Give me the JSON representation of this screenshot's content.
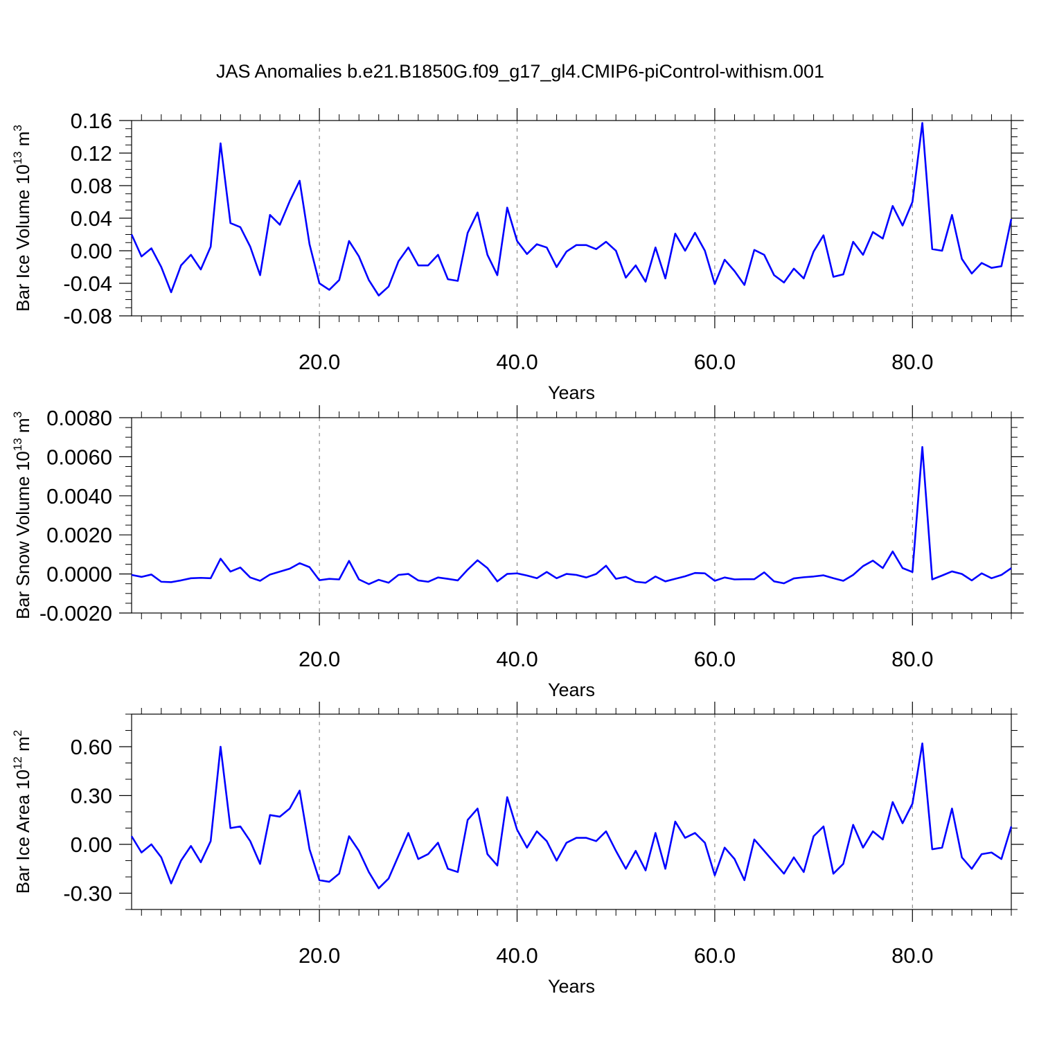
{
  "figure_title": "JAS Anomalies b.e21.B1850G.f09_g17_gl4.CMIP6-piControl-withism.001",
  "line_color": "#0000ff",
  "chart_data": [
    {
      "type": "line",
      "ylabel": "Bar Ice Volume 10",
      "ylabel_exp": "13",
      "ylabel_unit": "m",
      "ylabel_unit_exp": "3",
      "xlabel": "Years",
      "xlim": [
        1,
        90
      ],
      "ylim": [
        -0.08,
        0.16
      ],
      "xticks": [
        20,
        40,
        60,
        80
      ],
      "xtick_labels": [
        "20.0",
        "40.0",
        "60.0",
        "80.0"
      ],
      "yticks": [
        -0.08,
        -0.04,
        0.0,
        0.04,
        0.08,
        0.12,
        0.16
      ],
      "ytick_labels": [
        "-0.08",
        "-0.04",
        "0.00",
        "0.04",
        "0.08",
        "0.12",
        "0.16"
      ],
      "y_minor_step": 0.01,
      "x_minor_step": 2,
      "grid": "vertical dashed at major x ticks",
      "series": [
        {
          "values": [
            0.02,
            -0.007,
            0.003,
            -0.02,
            -0.051,
            -0.018,
            -0.005,
            -0.023,
            0.005,
            0.132,
            0.034,
            0.029,
            0.005,
            -0.03,
            0.044,
            0.032,
            0.061,
            0.086,
            0.008,
            -0.04,
            -0.048,
            -0.036,
            0.012,
            -0.007,
            -0.036,
            -0.055,
            -0.044,
            -0.013,
            0.004,
            -0.018,
            -0.018,
            -0.005,
            -0.035,
            -0.037,
            0.022,
            0.047,
            -0.005,
            -0.03,
            0.053,
            0.012,
            -0.004,
            0.008,
            0.004,
            -0.02,
            -0.001,
            0.007,
            0.007,
            0.002,
            0.011,
            0.0,
            -0.033,
            -0.018,
            -0.038,
            0.004,
            -0.034,
            0.021,
            0.0,
            0.022,
            0.0,
            -0.041,
            -0.011,
            -0.025,
            -0.042,
            0.001,
            -0.005,
            -0.03,
            -0.039,
            -0.022,
            -0.034,
            -0.001,
            0.019,
            -0.032,
            -0.029,
            0.011,
            -0.005,
            0.023,
            0.015,
            0.055,
            0.031,
            0.06,
            0.157,
            0.002,
            0.0,
            0.044,
            -0.01,
            -0.028,
            -0.015,
            -0.021,
            -0.019,
            0.039
          ]
        }
      ]
    },
    {
      "type": "line",
      "ylabel": "Bar Snow Volume 10",
      "ylabel_exp": "13",
      "ylabel_unit": "m",
      "ylabel_unit_exp": "3",
      "xlabel": "Years",
      "xlim": [
        1,
        90
      ],
      "ylim": [
        -0.002,
        0.008
      ],
      "xticks": [
        20,
        40,
        60,
        80
      ],
      "xtick_labels": [
        "20.0",
        "40.0",
        "60.0",
        "80.0"
      ],
      "yticks": [
        -0.002,
        0.0,
        0.002,
        0.004,
        0.006,
        0.008
      ],
      "ytick_labels": [
        "-0.0020",
        "0.0000",
        "0.0020",
        "0.0040",
        "0.0060",
        "0.0080"
      ],
      "y_minor_step": 0.0005,
      "x_minor_step": 2,
      "grid": "vertical dashed at major x ticks",
      "series": [
        {
          "values": [
            -5e-05,
            -0.00015,
            -3e-05,
            -0.0004,
            -0.00042,
            -0.00033,
            -0.00022,
            -0.0002,
            -0.00022,
            0.00078,
            0.00012,
            0.00033,
            -0.00018,
            -0.00035,
            -3e-05,
            0.00012,
            0.00027,
            0.00055,
            0.00035,
            -0.00032,
            -0.00025,
            -0.00028,
            0.00067,
            -0.00028,
            -0.00052,
            -0.0003,
            -0.00045,
            -5e-05,
            0.0,
            -0.00033,
            -0.0004,
            -0.00018,
            -0.00025,
            -0.00033,
            0.00022,
            0.0007,
            0.0003,
            -0.00038,
            0.0,
            3e-05,
            -8e-05,
            -0.00022,
            0.0001,
            -0.00022,
            0.0,
            -5e-05,
            -0.00018,
            0.0,
            0.00042,
            -0.00025,
            -0.00015,
            -0.0004,
            -0.00045,
            -0.00013,
            -0.00038,
            -0.00025,
            -0.00012,
            5e-05,
            3e-05,
            -0.00035,
            -0.00018,
            -0.00028,
            -0.00027,
            -0.00027,
            8e-05,
            -0.00038,
            -0.00048,
            -0.00023,
            -0.00017,
            -0.00013,
            -7e-05,
            -0.00022,
            -0.00035,
            -5e-05,
            0.0004,
            0.00068,
            0.0003,
            0.00115,
            0.0003,
            0.0001,
            0.0065,
            -0.00028,
            -8e-05,
            0.00013,
            0.0,
            -0.00033,
            3e-05,
            -0.00022,
            -5e-05,
            0.0003
          ]
        }
      ]
    },
    {
      "type": "line",
      "ylabel": "Bar Ice Area 10",
      "ylabel_exp": "12",
      "ylabel_unit": "m",
      "ylabel_unit_exp": "2",
      "xlabel": "Years",
      "xlim": [
        1,
        90
      ],
      "ylim": [
        -0.4,
        0.8
      ],
      "xticks": [
        20,
        40,
        60,
        80
      ],
      "xtick_labels": [
        "20.0",
        "40.0",
        "60.0",
        "80.0"
      ],
      "yticks": [
        -0.3,
        0.0,
        0.3,
        0.6
      ],
      "ytick_labels": [
        "-0.30",
        "0.00",
        "0.30",
        "0.60"
      ],
      "y_minor_step": 0.1,
      "x_minor_step": 2,
      "grid": "vertical dashed at major x ticks",
      "series": [
        {
          "values": [
            0.05,
            -0.05,
            0.0,
            -0.08,
            -0.24,
            -0.1,
            -0.01,
            -0.11,
            0.02,
            0.6,
            0.1,
            0.11,
            0.02,
            -0.12,
            0.18,
            0.17,
            0.22,
            0.33,
            -0.03,
            -0.22,
            -0.23,
            -0.18,
            0.05,
            -0.04,
            -0.17,
            -0.27,
            -0.21,
            -0.07,
            0.07,
            -0.09,
            -0.06,
            0.01,
            -0.15,
            -0.17,
            0.15,
            0.22,
            -0.06,
            -0.13,
            0.29,
            0.09,
            -0.02,
            0.08,
            0.02,
            -0.1,
            0.01,
            0.04,
            0.04,
            0.02,
            0.08,
            -0.04,
            -0.15,
            -0.04,
            -0.16,
            0.07,
            -0.15,
            0.14,
            0.04,
            0.07,
            0.01,
            -0.19,
            -0.02,
            -0.09,
            -0.22,
            0.03,
            -0.04,
            -0.11,
            -0.18,
            -0.08,
            -0.17,
            0.05,
            0.11,
            -0.18,
            -0.12,
            0.12,
            -0.02,
            0.08,
            0.03,
            0.26,
            0.13,
            0.25,
            0.62,
            -0.03,
            -0.02,
            0.22,
            -0.08,
            -0.15,
            -0.06,
            -0.05,
            -0.09,
            0.11
          ]
        }
      ]
    }
  ]
}
